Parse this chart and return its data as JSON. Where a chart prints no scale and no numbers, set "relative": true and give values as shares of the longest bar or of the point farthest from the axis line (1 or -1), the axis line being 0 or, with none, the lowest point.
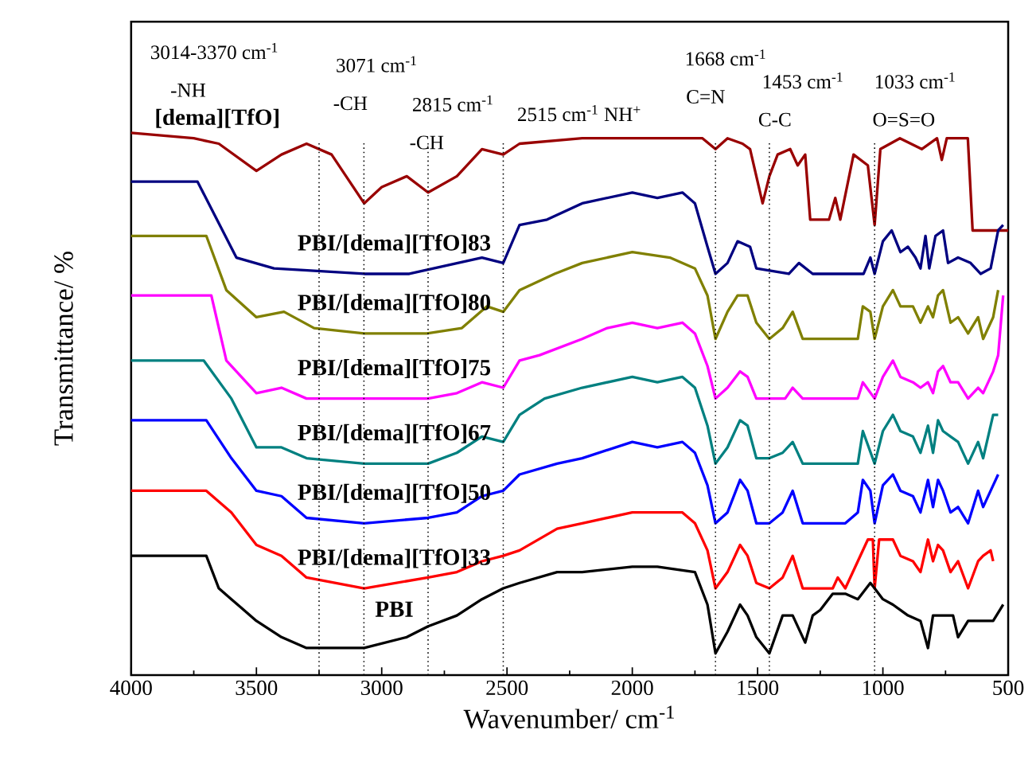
{
  "chart_data": {
    "type": "line",
    "relative": true,
    "xlabel": "Wavenumber/ cm$^{-1}$",
    "ylabel": "Transmittance/ %",
    "xlim": [
      4000,
      500
    ],
    "xticks": [
      4000,
      3500,
      3000,
      2500,
      2000,
      1500,
      1000,
      500
    ],
    "series": [
      {
        "name": "[dema][TfO]",
        "color": "#990000",
        "x": [
          4000,
          3750,
          3650,
          3500,
          3400,
          3300,
          3200,
          3070,
          3000,
          2900,
          2815,
          2700,
          2600,
          2515,
          2450,
          2200,
          1900,
          1720,
          1668,
          1620,
          1560,
          1530,
          1480,
          1453,
          1420,
          1370,
          1340,
          1310,
          1290,
          1215,
          1190,
          1170,
          1117,
          1060,
          1033,
          1010,
          932,
          845,
          784,
          765,
          745,
          661,
          642,
          500
        ],
        "values": [
          1.0,
          0.99,
          0.98,
          0.93,
          0.96,
          0.98,
          0.96,
          0.87,
          0.9,
          0.92,
          0.89,
          0.92,
          0.97,
          0.96,
          0.98,
          0.99,
          0.99,
          0.99,
          0.97,
          0.99,
          0.98,
          0.97,
          0.87,
          0.92,
          0.96,
          0.97,
          0.94,
          0.96,
          0.84,
          0.84,
          0.88,
          0.84,
          0.96,
          0.94,
          0.83,
          0.97,
          0.99,
          0.97,
          0.99,
          0.95,
          0.99,
          0.99,
          0.82,
          0.82
        ]
      },
      {
        "name": "PBI/[dema][TfO]83",
        "color": "#000080",
        "x": [
          4000,
          3735,
          3580,
          3430,
          3070,
          2890,
          2600,
          2515,
          2450,
          2340,
          2200,
          2000,
          1900,
          1800,
          1750,
          1700,
          1668,
          1620,
          1580,
          1530,
          1505,
          1375,
          1335,
          1280,
          1077,
          1050,
          1033,
          1000,
          965,
          930,
          900,
          870,
          850,
          830,
          815,
          790,
          760,
          740,
          700,
          650,
          610,
          570,
          540,
          520
        ],
        "values": [
          0.91,
          0.91,
          0.77,
          0.75,
          0.74,
          0.74,
          0.77,
          0.76,
          0.83,
          0.84,
          0.87,
          0.89,
          0.88,
          0.89,
          0.87,
          0.79,
          0.74,
          0.76,
          0.8,
          0.79,
          0.75,
          0.74,
          0.76,
          0.74,
          0.74,
          0.77,
          0.74,
          0.8,
          0.82,
          0.78,
          0.79,
          0.77,
          0.75,
          0.81,
          0.75,
          0.81,
          0.82,
          0.76,
          0.77,
          0.76,
          0.74,
          0.75,
          0.82,
          0.83
        ]
      },
      {
        "name": "PBI/[dema][TfO]80",
        "color": "#808000",
        "x": [
          4000,
          3700,
          3620,
          3500,
          3390,
          3270,
          3070,
          2820,
          2680,
          2580,
          2515,
          2450,
          2310,
          2200,
          2000,
          1850,
          1750,
          1700,
          1668,
          1620,
          1580,
          1540,
          1505,
          1453,
          1400,
          1360,
          1320,
          1100,
          1080,
          1050,
          1033,
          1000,
          960,
          930,
          880,
          850,
          820,
          800,
          780,
          760,
          730,
          700,
          660,
          620,
          600,
          560,
          540
        ],
        "values": [
          0.81,
          0.81,
          0.71,
          0.66,
          0.67,
          0.64,
          0.63,
          0.63,
          0.64,
          0.68,
          0.67,
          0.71,
          0.74,
          0.76,
          0.78,
          0.77,
          0.75,
          0.7,
          0.62,
          0.67,
          0.7,
          0.7,
          0.65,
          0.62,
          0.64,
          0.67,
          0.62,
          0.62,
          0.68,
          0.67,
          0.62,
          0.68,
          0.71,
          0.68,
          0.68,
          0.65,
          0.68,
          0.66,
          0.7,
          0.71,
          0.65,
          0.66,
          0.63,
          0.66,
          0.62,
          0.66,
          0.71
        ]
      },
      {
        "name": "PBI/[dema][TfO]75",
        "color": "#ff00ff",
        "x": [
          4000,
          3680,
          3620,
          3500,
          3400,
          3300,
          3070,
          2815,
          2700,
          2600,
          2515,
          2450,
          2370,
          2200,
          2100,
          2000,
          1900,
          1800,
          1750,
          1700,
          1668,
          1620,
          1570,
          1540,
          1505,
          1453,
          1390,
          1360,
          1320,
          1100,
          1080,
          1033,
          1000,
          960,
          930,
          880,
          850,
          820,
          800,
          780,
          760,
          730,
          700,
          660,
          620,
          600,
          560,
          540,
          520
        ],
        "values": [
          0.7,
          0.7,
          0.58,
          0.52,
          0.53,
          0.51,
          0.51,
          0.51,
          0.52,
          0.54,
          0.53,
          0.58,
          0.59,
          0.62,
          0.64,
          0.65,
          0.64,
          0.65,
          0.63,
          0.57,
          0.51,
          0.53,
          0.56,
          0.55,
          0.51,
          0.51,
          0.51,
          0.53,
          0.51,
          0.51,
          0.54,
          0.51,
          0.55,
          0.58,
          0.55,
          0.54,
          0.53,
          0.54,
          0.52,
          0.56,
          0.57,
          0.54,
          0.54,
          0.51,
          0.53,
          0.52,
          0.56,
          0.59,
          0.7
        ]
      },
      {
        "name": "PBI/[dema][TfO]67",
        "color": "#008080",
        "x": [
          4000,
          3710,
          3600,
          3500,
          3400,
          3300,
          3070,
          2815,
          2700,
          2600,
          2515,
          2450,
          2350,
          2200,
          2000,
          1900,
          1800,
          1750,
          1700,
          1668,
          1620,
          1570,
          1540,
          1505,
          1453,
          1400,
          1360,
          1320,
          1100,
          1080,
          1033,
          1000,
          960,
          930,
          880,
          850,
          820,
          800,
          780,
          760,
          730,
          700,
          660,
          620,
          600,
          560,
          540
        ],
        "values": [
          0.58,
          0.58,
          0.51,
          0.42,
          0.42,
          0.4,
          0.39,
          0.39,
          0.41,
          0.44,
          0.43,
          0.48,
          0.51,
          0.53,
          0.55,
          0.54,
          0.55,
          0.53,
          0.46,
          0.39,
          0.42,
          0.47,
          0.46,
          0.4,
          0.4,
          0.41,
          0.43,
          0.39,
          0.39,
          0.45,
          0.39,
          0.45,
          0.48,
          0.45,
          0.44,
          0.41,
          0.46,
          0.41,
          0.47,
          0.45,
          0.44,
          0.43,
          0.39,
          0.43,
          0.4,
          0.48,
          0.48
        ]
      },
      {
        "name": "PBI/[dema][TfO]50",
        "color": "#0000ff",
        "x": [
          4000,
          3700,
          3600,
          3500,
          3400,
          3300,
          3070,
          2815,
          2700,
          2600,
          2515,
          2450,
          2300,
          2200,
          2000,
          1900,
          1800,
          1750,
          1700,
          1668,
          1620,
          1570,
          1540,
          1505,
          1453,
          1400,
          1360,
          1320,
          1180,
          1150,
          1100,
          1080,
          1050,
          1033,
          1000,
          960,
          930,
          880,
          850,
          820,
          800,
          780,
          760,
          730,
          700,
          660,
          620,
          600,
          560,
          540
        ],
        "values": [
          0.47,
          0.47,
          0.4,
          0.34,
          0.33,
          0.29,
          0.28,
          0.29,
          0.3,
          0.33,
          0.34,
          0.37,
          0.39,
          0.4,
          0.43,
          0.42,
          0.43,
          0.41,
          0.35,
          0.28,
          0.3,
          0.36,
          0.34,
          0.28,
          0.28,
          0.3,
          0.34,
          0.28,
          0.28,
          0.28,
          0.3,
          0.36,
          0.34,
          0.28,
          0.35,
          0.37,
          0.34,
          0.33,
          0.3,
          0.36,
          0.31,
          0.36,
          0.34,
          0.3,
          0.31,
          0.28,
          0.34,
          0.31,
          0.35,
          0.37
        ]
      },
      {
        "name": "PBI/[dema][TfO]33",
        "color": "#ff0000",
        "x": [
          4000,
          3700,
          3600,
          3500,
          3400,
          3300,
          3070,
          2815,
          2700,
          2600,
          2515,
          2450,
          2300,
          2200,
          2000,
          1800,
          1750,
          1700,
          1668,
          1620,
          1570,
          1540,
          1505,
          1453,
          1400,
          1360,
          1320,
          1200,
          1180,
          1150,
          1100,
          1060,
          1040,
          1033,
          1015,
          960,
          930,
          880,
          850,
          820,
          800,
          780,
          760,
          730,
          700,
          660,
          620,
          600,
          570,
          560
        ],
        "values": [
          0.34,
          0.34,
          0.3,
          0.24,
          0.22,
          0.18,
          0.16,
          0.18,
          0.19,
          0.21,
          0.22,
          0.23,
          0.27,
          0.28,
          0.3,
          0.3,
          0.28,
          0.23,
          0.16,
          0.19,
          0.24,
          0.22,
          0.17,
          0.16,
          0.18,
          0.22,
          0.16,
          0.16,
          0.18,
          0.16,
          0.21,
          0.25,
          0.25,
          0.16,
          0.25,
          0.25,
          0.22,
          0.21,
          0.19,
          0.25,
          0.21,
          0.24,
          0.23,
          0.19,
          0.21,
          0.16,
          0.21,
          0.22,
          0.23,
          0.21
        ]
      },
      {
        "name": "PBI",
        "color": "#000000",
        "x": [
          4000,
          3700,
          3650,
          3600,
          3500,
          3400,
          3300,
          3200,
          3070,
          2900,
          2815,
          2700,
          2600,
          2515,
          2450,
          2300,
          2200,
          2000,
          1900,
          1750,
          1700,
          1668,
          1620,
          1570,
          1540,
          1505,
          1453,
          1400,
          1360,
          1310,
          1280,
          1250,
          1200,
          1150,
          1100,
          1050,
          1033,
          1000,
          960,
          900,
          850,
          820,
          800,
          760,
          720,
          700,
          660,
          600,
          560,
          520
        ],
        "values": [
          0.22,
          0.22,
          0.16,
          0.14,
          0.1,
          0.07,
          0.05,
          0.05,
          0.05,
          0.07,
          0.09,
          0.11,
          0.14,
          0.16,
          0.17,
          0.19,
          0.19,
          0.2,
          0.2,
          0.19,
          0.13,
          0.04,
          0.08,
          0.13,
          0.11,
          0.07,
          0.04,
          0.11,
          0.11,
          0.06,
          0.11,
          0.12,
          0.15,
          0.15,
          0.14,
          0.17,
          0.16,
          0.14,
          0.13,
          0.11,
          0.1,
          0.05,
          0.11,
          0.11,
          0.11,
          0.07,
          0.1,
          0.1,
          0.1,
          0.13
        ]
      }
    ],
    "ref_lines": [
      {
        "axis": "x",
        "value": 3250,
        "line_style": "dotted"
      },
      {
        "axis": "x",
        "value": 3071,
        "line_style": "dotted"
      },
      {
        "axis": "x",
        "value": 2815,
        "line_style": "dotted"
      },
      {
        "axis": "x",
        "value": 2515,
        "line_style": "dotted"
      },
      {
        "axis": "x",
        "value": 1668,
        "line_style": "dotted"
      },
      {
        "axis": "x",
        "value": 1453,
        "line_style": "dotted"
      },
      {
        "axis": "x",
        "value": 1033,
        "line_style": "dotted"
      }
    ],
    "annotations": [
      "3014-3370 cm$^{-1}$",
      "-NH",
      "3071 cm$^{-1}$",
      "-CH",
      "2815 cm$^{-1}$",
      "-CH",
      "2515 cm$^{-1}$ NH$^{+}$",
      "1668 cm$^{-1}$",
      "C=N",
      "1453 cm$^{-1}$",
      "C-C",
      "1033 cm$^{-1}$",
      "O=S=O"
    ]
  }
}
